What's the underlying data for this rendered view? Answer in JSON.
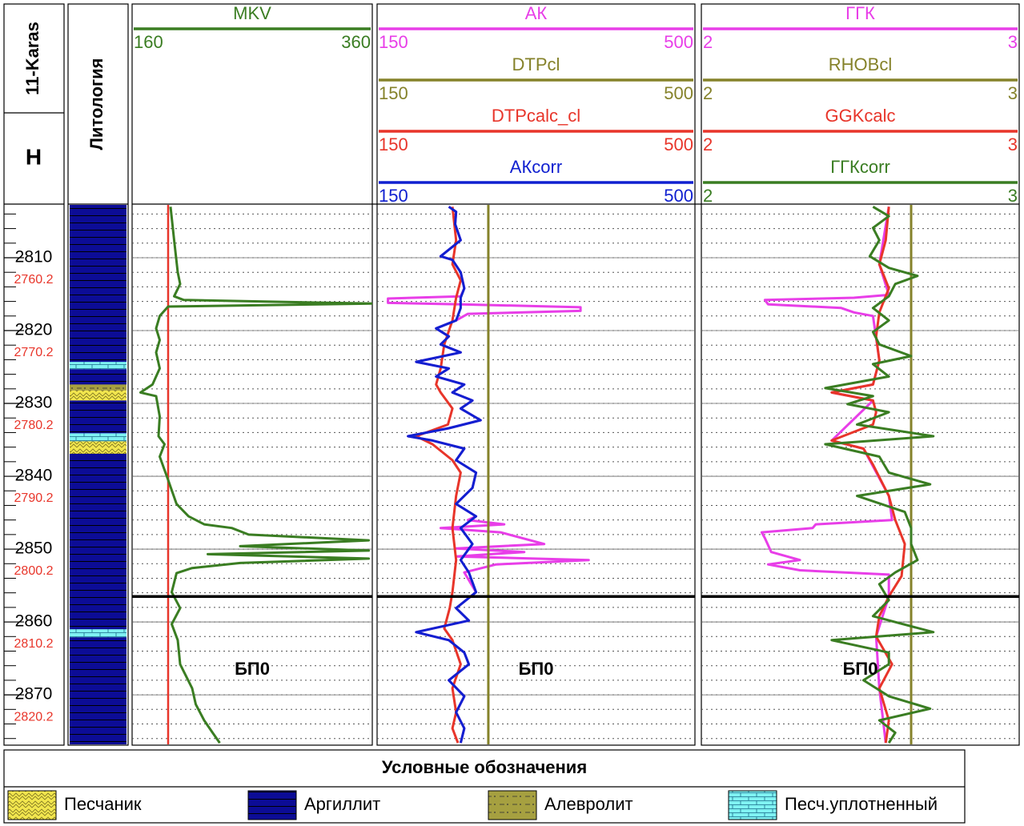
{
  "header": {
    "well": "11-Karas",
    "depth_title": "H",
    "lithology_title": "Литология"
  },
  "chart_data": {
    "type": "well-log",
    "ylim": [
      2802.75,
      2876.8
    ],
    "yticks": [
      2810,
      2820,
      2830,
      2840,
      2850,
      2860,
      2870
    ],
    "minor_yticks": [
      2804,
      2806,
      2808,
      2810,
      2812,
      2814,
      2816,
      2818,
      2820,
      2822,
      2824,
      2826,
      2828,
      2830,
      2832,
      2834,
      2836,
      2838,
      2840,
      2842,
      2844,
      2846,
      2848,
      2850,
      2852,
      2854,
      2856,
      2858,
      2860,
      2862,
      2864,
      2866,
      2868,
      2870,
      2872,
      2874,
      2876
    ],
    "y2lim": [
      2749.88,
      2823.93
    ],
    "y2ticks": [
      2760.2,
      2770.2,
      2780.2,
      2790.2,
      2800.2,
      2810.2,
      2820.2
    ],
    "marker": {
      "label": "БП0",
      "depth": 2856.5
    },
    "lithology": {
      "base_type": 1,
      "intervals": [
        {
          "top": 2824.3,
          "base": 2825.3,
          "type": 3
        },
        {
          "top": 2827.4,
          "base": 2828.2,
          "type": 2
        },
        {
          "top": 2828.2,
          "base": 2829.6,
          "type": 0
        },
        {
          "top": 2834.1,
          "base": 2835.2,
          "type": 3
        },
        {
          "top": 2835.2,
          "base": 2836.9,
          "type": 0
        },
        {
          "top": 2861.0,
          "base": 2862.1,
          "type": 3
        }
      ]
    },
    "tracks": [
      {
        "lines": [
          {
            "color": "#e8352a",
            "value": 190
          }
        ],
        "curves": [
          {
            "name": "MKV",
            "color": "#3a7d22",
            "xlim": [
              160,
              360
            ],
            "xticks": [
              160,
              360
            ],
            "depths": [
              2803.0,
              2807.6,
              2812.0,
              2813.6,
              2815.3,
              2815.8,
              2816.3,
              2816.7,
              2818.0,
              2819.7,
              2821.3,
              2823.0,
              2825.2,
              2827.4,
              2828.5,
              2829.0,
              2831.8,
              2834.5,
              2835.6,
              2837.3,
              2840.5,
              2843.8,
              2845.5,
              2846.6,
              2847.1,
              2848.0,
              2848.8,
              2849.6,
              2850.2,
              2850.7,
              2851.3,
              2851.9,
              2852.6,
              2853.3,
              2855.9,
              2858.1,
              2860.3,
              2862.5,
              2865.8,
              2869.1,
              2871.3,
              2873.5,
              2875.2,
              2876.6
            ],
            "values": [
              192,
              195,
              198,
              200,
              195,
              203,
              360,
              190,
              183,
              180,
              183,
              180,
              183,
              177,
              167,
              180,
              183,
              182,
              187,
              183,
              190,
              197,
              207,
              220,
              243,
              257,
              357,
              250,
              357,
              223,
              357,
              250,
              210,
              197,
              193,
              200,
              193,
              198,
              200,
              210,
              213,
              220,
              227,
              233
            ]
          }
        ]
      },
      {
        "curves": [
          {
            "name": "АК",
            "color": "#e83ee8",
            "xlim": [
              150,
              500
            ],
            "xticks": [
              150,
              500
            ],
            "depths": [
              2803.0,
              2803.7,
              2805.4,
              2807.6,
              2809.8,
              2810.3,
              2812.0,
              2814.2,
              2815.3,
              2815.6,
              2816.2,
              2816.4,
              2816.8,
              2817.3,
              2817.7,
              2818.6,
              2819.7,
              2820.8,
              2821.9,
              2823.0,
              2824.3,
              2825.2,
              2826.3,
              2827.4,
              2828.5,
              2829.6,
              2830.7,
              2832.3,
              2833.4,
              2834.5,
              2835.1,
              2836.2,
              2837.8,
              2839.5,
              2841.6,
              2843.8,
              2845.5,
              2846.0,
              2846.6,
              2847.1,
              2847.7,
              2849.3,
              2849.9,
              2850.4,
              2851.0,
              2851.5,
              2852.1,
              2853.2,
              2855.9,
              2858.1,
              2859.8,
              2861.4,
              2862.5,
              2864.2,
              2865.8,
              2868.0,
              2870.2,
              2872.4,
              2874.6,
              2876.6
            ],
            "values": [
              229,
              237,
              236,
              242,
              220,
              233,
              242,
              246,
              242,
              162,
              162,
              242,
              374,
              374,
              250,
              237,
              215,
              229,
              220,
              242,
              193,
              229,
              215,
              246,
              233,
              255,
              242,
              264,
              229,
              184,
              211,
              246,
              237,
              259,
              255,
              237,
              259,
              250,
              290,
              220,
              286,
              334,
              237,
              312,
              237,
              383,
              281,
              246,
              259,
              237,
              251,
              193,
              229,
              246,
              251,
              229,
              246,
              237,
              246,
              242
            ]
          },
          {
            "name": "DTPcl",
            "color": "#85822a",
            "xlim": [
              150,
              500
            ],
            "xticks": [
              150,
              500
            ],
            "constant": 272.5
          },
          {
            "name": "DTPcalc_cl",
            "color": "#e8352a",
            "xlim": [
              150,
              500
            ],
            "xticks": [
              150,
              500
            ],
            "depths": [
              2803.0,
              2807.6,
              2810.9,
              2813.1,
              2815.5,
              2818.6,
              2821.9,
              2825.2,
              2827.4,
              2828.5,
              2830.7,
              2832.9,
              2834.5,
              2835.6,
              2837.8,
              2839.5,
              2842.7,
              2847.1,
              2851.5,
              2855.9,
              2858.1,
              2860.9,
              2862.5,
              2865.8,
              2869.1,
              2872.4,
              2874.6,
              2876.6
            ],
            "values": [
              233,
              237,
              233,
              242,
              237,
              233,
              224,
              220,
              215,
              220,
              233,
              228,
              193,
              211,
              233,
              242,
              237,
              233,
              237,
              233,
              230,
              224,
              233,
              242,
              233,
              237,
              233,
              239
            ]
          },
          {
            "name": "АКcorr",
            "color": "#1020d0",
            "xlim": [
              150,
              500
            ],
            "xticks": [
              150,
              500
            ],
            "depths": [
              2803.0,
              2803.7,
              2805.4,
              2807.6,
              2809.8,
              2810.3,
              2812.0,
              2814.2,
              2815.5,
              2816.9,
              2818.6,
              2819.7,
              2820.8,
              2821.9,
              2823.0,
              2824.3,
              2825.2,
              2826.3,
              2827.4,
              2828.5,
              2829.6,
              2830.7,
              2832.3,
              2833.4,
              2834.5,
              2835.1,
              2836.2,
              2837.8,
              2839.5,
              2841.6,
              2843.8,
              2845.5,
              2847.1,
              2849.3,
              2851.5,
              2853.2,
              2855.9,
              2858.1,
              2859.8,
              2861.4,
              2862.5,
              2864.2,
              2865.8,
              2868.0,
              2870.2,
              2872.4,
              2874.6,
              2876.6
            ],
            "values": [
              229,
              237,
              236,
              242,
              220,
              233,
              242,
              246,
              242,
              242,
              237,
              215,
              229,
              220,
              242,
              193,
              229,
              215,
              246,
              233,
              255,
              242,
              264,
              229,
              184,
              211,
              246,
              237,
              259,
              255,
              237,
              259,
              242,
              255,
              242,
              251,
              259,
              237,
              251,
              193,
              229,
              246,
              251,
              229,
              246,
              237,
              246,
              242
            ]
          }
        ]
      },
      {
        "curves": [
          {
            "name": "ГГК",
            "color": "#e83ee8",
            "xlim": [
              2,
              3
            ],
            "xticks": [
              2,
              3
            ],
            "depths": [
              2803.0,
              2810.9,
              2815.1,
              2815.5,
              2815.8,
              2816.4,
              2816.9,
              2817.5,
              2818.0,
              2824.1,
              2827.4,
              2828.5,
              2829.6,
              2835.1,
              2836.2,
              2842.7,
              2846.0,
              2846.6,
              2847.1,
              2847.7,
              2848.5,
              2850.4,
              2851.5,
              2852.1,
              2852.9,
              2853.5,
              2856.5,
              2862.0,
              2869.1,
              2876.6
            ],
            "values": [
              2.59,
              2.56,
              2.59,
              2.48,
              2.2,
              2.21,
              2.44,
              2.48,
              2.54,
              2.56,
              2.54,
              2.41,
              2.54,
              2.41,
              2.51,
              2.59,
              2.6,
              2.36,
              2.35,
              2.19,
              2.2,
              2.22,
              2.31,
              2.21,
              2.31,
              2.59,
              2.59,
              2.55,
              2.56,
              2.58
            ]
          },
          {
            "name": "RHOBcl",
            "color": "#85822a",
            "xlim": [
              2,
              3
            ],
            "xticks": [
              2,
              3
            ],
            "constant": 2.66
          },
          {
            "name": "GGKcalc",
            "color": "#e8352a",
            "xlim": [
              2,
              3
            ],
            "xticks": [
              2,
              3
            ],
            "depths": [
              2803.0,
              2807.6,
              2810.9,
              2814.2,
              2817.5,
              2820.8,
              2824.1,
              2827.4,
              2828.5,
              2829.6,
              2831.2,
              2832.9,
              2835.1,
              2836.2,
              2838.4,
              2842.7,
              2846.0,
              2849.3,
              2853.7,
              2856.5,
              2859.2,
              2862.0,
              2865.8,
              2869.1,
              2873.5,
              2876.6
            ],
            "values": [
              2.59,
              2.58,
              2.56,
              2.59,
              2.56,
              2.55,
              2.56,
              2.54,
              2.41,
              2.54,
              2.55,
              2.54,
              2.41,
              2.51,
              2.54,
              2.59,
              2.61,
              2.64,
              2.63,
              2.59,
              2.56,
              2.55,
              2.6,
              2.56,
              2.59,
              2.58
            ]
          },
          {
            "name": "ГГКcorr",
            "color": "#3a7d22",
            "xlim": [
              2,
              3
            ],
            "xticks": [
              2,
              3
            ],
            "depths": [
              2803.0,
              2804.3,
              2805.9,
              2807.6,
              2809.8,
              2811.4,
              2812.5,
              2813.6,
              2815.3,
              2816.9,
              2818.6,
              2820.2,
              2821.9,
              2823.5,
              2824.6,
              2826.3,
              2827.9,
              2829.0,
              2830.1,
              2831.2,
              2832.9,
              2834.5,
              2835.6,
              2837.3,
              2839.5,
              2841.1,
              2842.7,
              2844.9,
              2847.1,
              2849.3,
              2851.5,
              2853.2,
              2854.8,
              2857.0,
              2859.2,
              2861.4,
              2862.5,
              2864.2,
              2865.8,
              2868.0,
              2870.2,
              2871.9,
              2873.5,
              2875.2,
              2876.6
            ],
            "values": [
              2.54,
              2.59,
              2.54,
              2.56,
              2.53,
              2.59,
              2.68,
              2.61,
              2.59,
              2.54,
              2.59,
              2.54,
              2.56,
              2.66,
              2.54,
              2.59,
              2.39,
              2.54,
              2.46,
              2.59,
              2.49,
              2.73,
              2.39,
              2.56,
              2.59,
              2.72,
              2.49,
              2.64,
              2.66,
              2.66,
              2.68,
              2.61,
              2.56,
              2.59,
              2.54,
              2.73,
              2.41,
              2.59,
              2.59,
              2.51,
              2.59,
              2.72,
              2.56,
              2.61,
              2.59
            ]
          }
        ]
      }
    ]
  },
  "legend": {
    "title": "Условные обозначения",
    "items": [
      {
        "label": "Песчаник",
        "pattern": "sand"
      },
      {
        "label": "Аргиллит",
        "pattern": "argil"
      },
      {
        "label": "Алевролит",
        "pattern": "silt"
      },
      {
        "label": "Песч.уплотненный",
        "pattern": "brick"
      }
    ]
  }
}
